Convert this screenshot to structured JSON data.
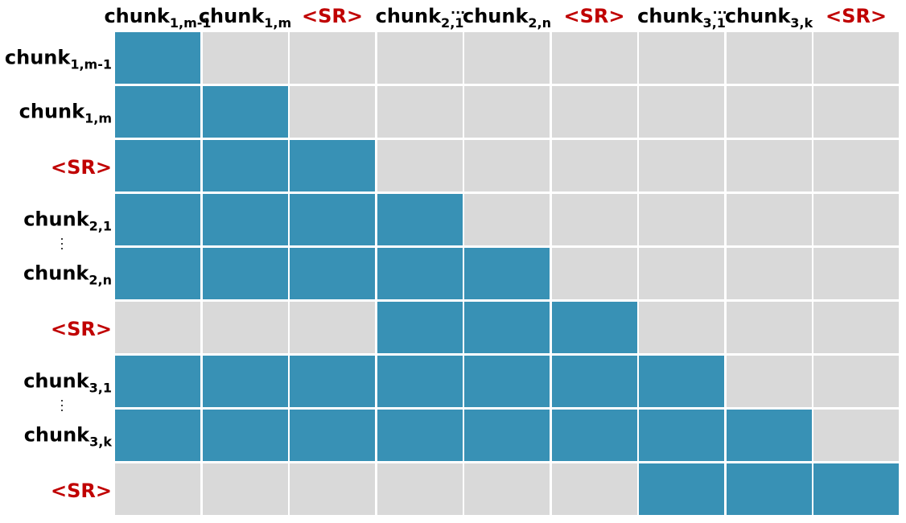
{
  "colors": {
    "attend": "#3891b5",
    "masked": "#d9d9d9",
    "special_token": "#c00000",
    "text": "#000000"
  },
  "labels": [
    {
      "base": "chunk",
      "sub": "1,m-1",
      "special": false
    },
    {
      "base": "chunk",
      "sub": "1,m",
      "special": false
    },
    {
      "base": "<SR>",
      "sub": "",
      "special": true
    },
    {
      "base": "chunk",
      "sub": "2,1",
      "special": false
    },
    {
      "base": "chunk",
      "sub": "2,n",
      "special": false
    },
    {
      "base": "<SR>",
      "sub": "",
      "special": true
    },
    {
      "base": "chunk",
      "sub": "3,1",
      "special": false
    },
    {
      "base": "chunk",
      "sub": "3,k",
      "special": false
    },
    {
      "base": "<SR>",
      "sub": "",
      "special": true
    }
  ],
  "ellipsis": {
    "horizontal": "···",
    "vertical_after_rows": [
      3,
      6
    ],
    "horizontal_after_cols": [
      3,
      6
    ]
  },
  "mask": [
    [
      1,
      0,
      0,
      0,
      0,
      0,
      0,
      0,
      0
    ],
    [
      1,
      1,
      0,
      0,
      0,
      0,
      0,
      0,
      0
    ],
    [
      1,
      1,
      1,
      0,
      0,
      0,
      0,
      0,
      0
    ],
    [
      1,
      1,
      1,
      1,
      0,
      0,
      0,
      0,
      0
    ],
    [
      1,
      1,
      1,
      1,
      1,
      0,
      0,
      0,
      0
    ],
    [
      0,
      0,
      0,
      1,
      1,
      1,
      0,
      0,
      0
    ],
    [
      1,
      1,
      1,
      1,
      1,
      1,
      1,
      0,
      0
    ],
    [
      1,
      1,
      1,
      1,
      1,
      1,
      1,
      1,
      0
    ],
    [
      0,
      0,
      0,
      0,
      0,
      0,
      1,
      1,
      1
    ]
  ]
}
